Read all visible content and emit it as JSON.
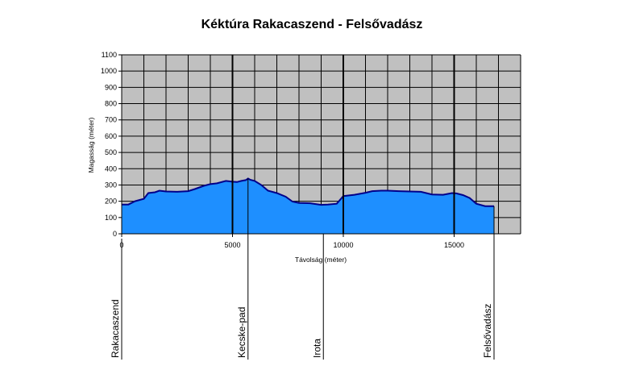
{
  "chart_data": {
    "type": "area",
    "title": "Kéktúra Rakacaszend - Felsővadász",
    "xlabel": "Távolság (méter)",
    "ylabel": "Magasság (méter)",
    "xlim": [
      0,
      18000
    ],
    "ylim": [
      0,
      1100
    ],
    "x_ticks": [
      0,
      5000,
      10000,
      15000
    ],
    "y_ticks": [
      0,
      100,
      200,
      300,
      400,
      500,
      600,
      700,
      800,
      900,
      1000,
      1100
    ],
    "grid": true,
    "colors": {
      "plot_bg": "#c0c0c0",
      "area_fill": "#1e8fff",
      "area_line": "#00008b",
      "grid": "#000000"
    },
    "series": [
      {
        "x": [
          0,
          300,
          600,
          1000,
          1200,
          1500,
          1700,
          2000,
          2500,
          3000,
          3300,
          3700,
          4000,
          4300,
          4700,
          5000,
          5200,
          5400,
          5600,
          5700,
          5800,
          6000,
          6300,
          6600,
          7000,
          7400,
          7700,
          8000,
          8500,
          9000,
          9300,
          9700,
          10000,
          10500,
          11000,
          11300,
          11700,
          12000,
          12500,
          13000,
          13500,
          14000,
          14500,
          14900,
          15100,
          15400,
          15700,
          16000,
          16400,
          16800
        ],
        "values": [
          180,
          180,
          200,
          215,
          250,
          255,
          265,
          260,
          258,
          262,
          275,
          295,
          305,
          310,
          325,
          320,
          318,
          325,
          330,
          340,
          332,
          325,
          300,
          265,
          250,
          228,
          198,
          190,
          188,
          178,
          180,
          185,
          232,
          240,
          252,
          262,
          265,
          265,
          262,
          260,
          258,
          242,
          240,
          250,
          248,
          238,
          220,
          185,
          170,
          170
        ]
      }
    ],
    "markers": [
      {
        "name": "Rakacaszend",
        "x": 0
      },
      {
        "name": "Kecske-pad",
        "x": 5700
      },
      {
        "name": "Irota",
        "x": 9100
      },
      {
        "name": "Felsővadász",
        "x": 16800
      }
    ]
  }
}
